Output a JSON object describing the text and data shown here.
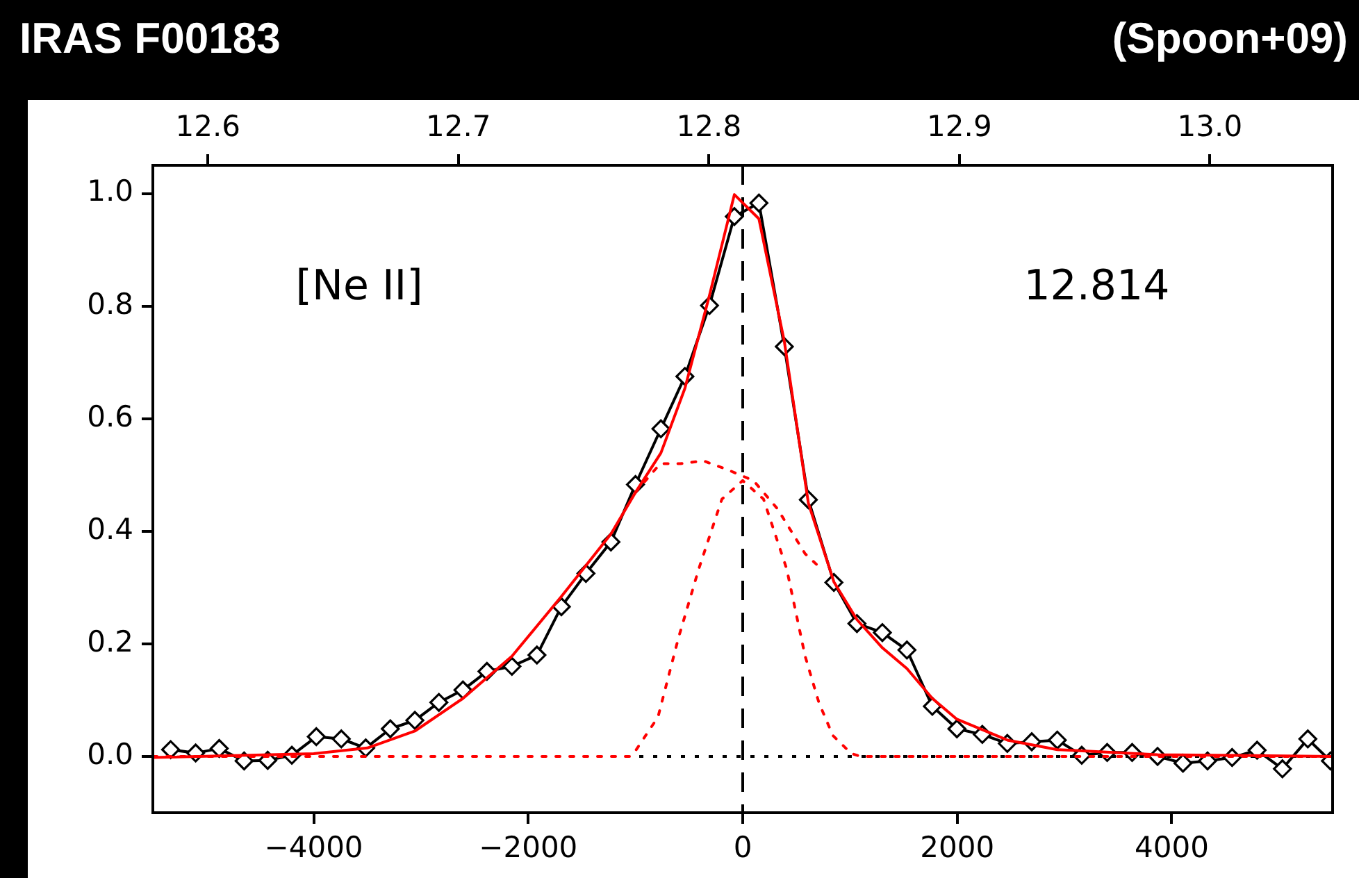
{
  "chart_data": {
    "type": "line",
    "title": "IRAS F00183",
    "annotations": [
      "(Spoon+09)",
      "[Ne II]",
      "12.814"
    ],
    "xlim": [
      -5500,
      5500
    ],
    "xticks": [
      {
        "value": -4000,
        "label": "−4000"
      },
      {
        "value": -2000,
        "label": "−2000"
      },
      0,
      2000,
      4000
    ],
    "x2lim": [
      12.578,
      13.049
    ],
    "x2ticks": [
      12.6,
      12.7,
      12.8,
      12.9,
      {
        "value": 13.0,
        "label": "13.0"
      }
    ],
    "ylim": [
      -0.1,
      1.05
    ],
    "yticks": [
      {
        "value": 0,
        "label": "0.0"
      },
      0.2,
      0.4,
      0.6,
      0.8,
      {
        "value": 1,
        "label": "1.0"
      }
    ],
    "grid": false,
    "legend": false,
    "ref_lines": [
      {
        "axis": "y",
        "value": 0,
        "color": "#000000",
        "line_style": "dotted"
      },
      {
        "axis": "x",
        "value": 0,
        "color": "#000000",
        "line_style": "dashed"
      }
    ],
    "series": [
      {
        "color": "#ff0000",
        "marker": "none",
        "line_style": "dotted",
        "x": [
          -5500,
          -1050,
          -1000,
          -790,
          -600,
          -410,
          -194,
          0,
          194,
          410,
          582,
          711,
          841,
          1013,
          1100,
          5500
        ],
        "values": [
          0,
          0,
          0.01,
          0.07,
          0.21,
          0.333,
          0.457,
          0.49,
          0.457,
          0.333,
          0.178,
          0.095,
          0.037,
          0.005,
          0,
          0
        ]
      },
      {
        "color": "#ff0000",
        "marker": "none",
        "line_style": "dotted",
        "x": [
          -1000,
          -770,
          -582,
          -366,
          -150,
          100,
          323,
          582,
          750
        ],
        "values": [
          0.469,
          0.52,
          0.52,
          0.525,
          0.51,
          0.49,
          0.44,
          0.36,
          0.33
        ]
      },
      {
        "color": "#ff0000",
        "marker": "none",
        "line_style": "solid",
        "x": [
          -5500,
          -4000,
          -3500,
          -3057,
          -2609,
          -2152,
          -1691,
          -1229,
          -1000,
          -763,
          -539,
          -310,
          -78,
          151,
          388,
          612,
          850,
          1065,
          1302,
          1531,
          1768,
          1997,
          2467,
          2933,
          3868,
          5500
        ],
        "values": [
          -0.002,
          0.005,
          0.015,
          0.045,
          0.103,
          0.178,
          0.284,
          0.395,
          0.469,
          0.539,
          0.654,
          0.819,
          0.998,
          0.955,
          0.737,
          0.45,
          0.31,
          0.243,
          0.193,
          0.156,
          0.103,
          0.066,
          0.029,
          0.012,
          0.003,
          0
        ]
      },
      {
        "color": "#000000",
        "marker": "diamond",
        "line_style": "solid",
        "x": [
          -5334,
          -5101,
          -4881,
          -4649,
          -4429,
          -4204,
          -3976,
          -3743,
          -3515,
          -3286,
          -3057,
          -2833,
          -2609,
          -2385,
          -2152,
          -1919,
          -1691,
          -1462,
          -1229,
          -1000,
          -763,
          -539,
          -310,
          -78,
          151,
          388,
          612,
          850,
          1065,
          1302,
          1531,
          1768,
          1997,
          2234,
          2467,
          2695,
          2933,
          3161,
          3398,
          3631,
          3868,
          4105,
          4334,
          4563,
          4796,
          5032,
          5269,
          5480
        ],
        "values": [
          0.012,
          0.006,
          0.014,
          -0.008,
          -0.007,
          0.002,
          0.035,
          0.031,
          0.015,
          0.049,
          0.064,
          0.096,
          0.118,
          0.151,
          0.16,
          0.18,
          0.266,
          0.325,
          0.381,
          0.483,
          0.582,
          0.675,
          0.801,
          0.959,
          0.983,
          0.728,
          0.456,
          0.309,
          0.236,
          0.22,
          0.189,
          0.089,
          0.049,
          0.039,
          0.023,
          0.026,
          0.029,
          0.002,
          0.007,
          0.007,
          0,
          -0.012,
          -0.008,
          -0.002,
          0.011,
          -0.022,
          0.031,
          -0.008
        ]
      }
    ]
  }
}
